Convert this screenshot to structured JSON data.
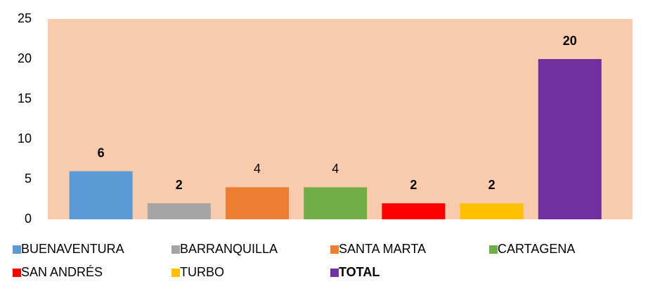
{
  "chart_data": {
    "type": "bar",
    "ylim": [
      0,
      25
    ],
    "yticks": [
      0,
      5,
      10,
      15,
      20,
      25
    ],
    "plot_background": "#f8cbad",
    "series": [
      {
        "name": "BUENAVENTURA",
        "color": "#5b9bd5",
        "values": [
          6
        ],
        "label_bold": true,
        "legend_bold": false
      },
      {
        "name": "BARRANQUILLA",
        "color": "#a5a5a5",
        "values": [
          2
        ],
        "label_bold": true,
        "legend_bold": false
      },
      {
        "name": "SANTA MARTA",
        "color": "#ed7d31",
        "values": [
          4
        ],
        "label_bold": false,
        "legend_bold": false
      },
      {
        "name": "CARTAGENA",
        "color": "#70ad47",
        "values": [
          4
        ],
        "label_bold": false,
        "legend_bold": false
      },
      {
        "name": "SAN ANDRÉS",
        "color": "#ff0000",
        "values": [
          2
        ],
        "label_bold": true,
        "legend_bold": false
      },
      {
        "name": "TURBO",
        "color": "#ffc000",
        "values": [
          2
        ],
        "label_bold": true,
        "legend_bold": false
      },
      {
        "name": "TOTAL",
        "color": "#7030a0",
        "values": [
          20
        ],
        "label_bold": true,
        "legend_bold": true
      }
    ]
  }
}
